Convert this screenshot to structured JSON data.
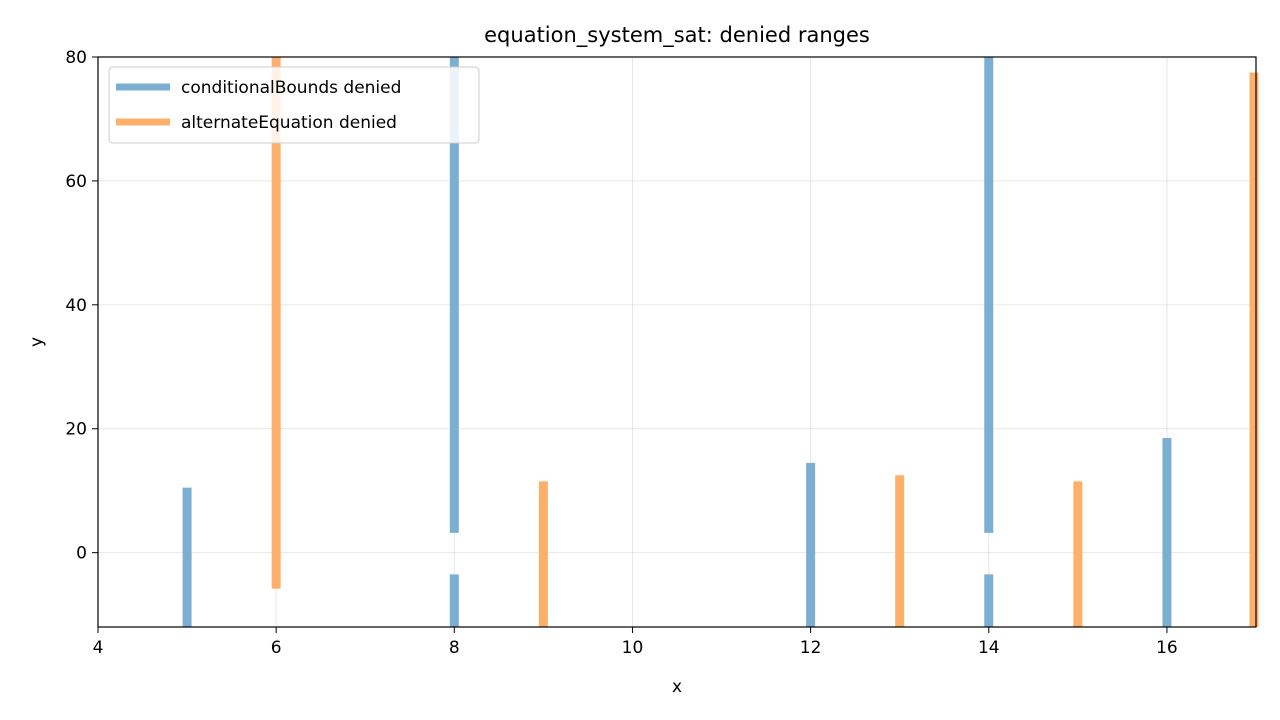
{
  "chart_data": {
    "type": "bar",
    "title": "equation_system_sat: denied ranges",
    "xlabel": "x",
    "ylabel": "y",
    "xlim": [
      4,
      17
    ],
    "ylim": [
      -12,
      80
    ],
    "xticks": [
      4,
      6,
      8,
      10,
      12,
      14,
      16
    ],
    "yticks": [
      0,
      20,
      40,
      60,
      80
    ],
    "grid": true,
    "legend_position": "top-left",
    "series": [
      {
        "name": "conditionalBounds denied",
        "color": "#7aafd2",
        "segments": [
          {
            "x": 5,
            "y0": -12,
            "y1": 10.5
          },
          {
            "x": 8,
            "y0": 3.2,
            "y1": 80
          },
          {
            "x": 8,
            "y0": -12,
            "y1": -3.5
          },
          {
            "x": 12,
            "y0": -12,
            "y1": 14.5
          },
          {
            "x": 14,
            "y0": 3.2,
            "y1": 80
          },
          {
            "x": 14,
            "y0": -12,
            "y1": -3.5
          },
          {
            "x": 16,
            "y0": -12,
            "y1": 18.5
          }
        ]
      },
      {
        "name": "alternateEquation denied",
        "color": "#feb06a",
        "segments": [
          {
            "x": 6,
            "y0": -5.8,
            "y1": 80
          },
          {
            "x": 9,
            "y0": -12,
            "y1": 11.5
          },
          {
            "x": 13,
            "y0": -12,
            "y1": 12.5
          },
          {
            "x": 15,
            "y0": -12,
            "y1": 11.5
          },
          {
            "x": 17,
            "y0": -12,
            "y1": 77.5
          }
        ]
      }
    ]
  }
}
